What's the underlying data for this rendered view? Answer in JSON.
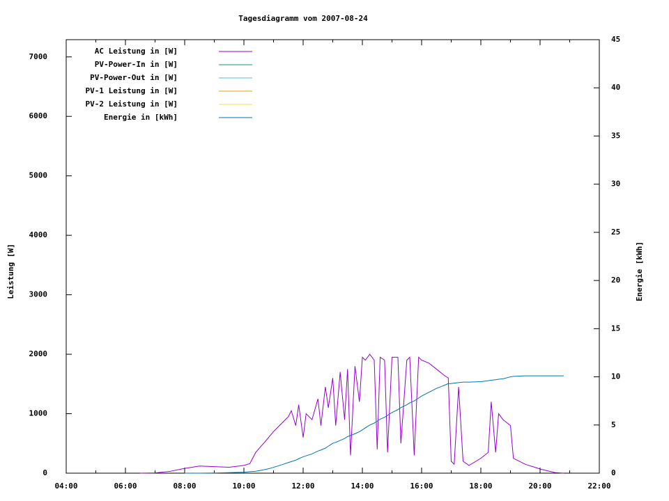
{
  "chart_data": {
    "type": "line",
    "title": "Tagesdiagramm vom 2007-08-24",
    "y_label": "Leistung [W]",
    "y2_label": "Energie [kWh]",
    "x": [
      6.5,
      7,
      7.5,
      8,
      8.25,
      8.5,
      9,
      9.5,
      10,
      10.2,
      10.4,
      10.75,
      11,
      11.3,
      11.5,
      11.6,
      11.75,
      11.85,
      12,
      12.1,
      12.3,
      12.5,
      12.6,
      12.75,
      12.85,
      13,
      13.1,
      13.25,
      13.4,
      13.5,
      13.6,
      13.75,
      13.9,
      14,
      14.1,
      14.25,
      14.4,
      14.5,
      14.6,
      14.75,
      14.85,
      15,
      15.2,
      15.3,
      15.5,
      15.6,
      15.75,
      15.9,
      16,
      16.25,
      16.5,
      16.75,
      16.9,
      17,
      17.1,
      17.25,
      17.4,
      17.6,
      18,
      18.25,
      18.35,
      18.5,
      18.6,
      18.75,
      19,
      19.1,
      19.5,
      20,
      20.5,
      20.8
    ],
    "series": [
      {
        "name": "AC Leistung in [W]",
        "color": "#9400d3",
        "values": [
          0,
          5,
          30,
          80,
          100,
          120,
          110,
          100,
          130,
          160,
          350,
          550,
          700,
          850,
          950,
          1050,
          800,
          1150,
          600,
          1000,
          900,
          1250,
          800,
          1450,
          1100,
          1600,
          800,
          1700,
          900,
          1750,
          300,
          1800,
          1200,
          1950,
          1900,
          2000,
          1900,
          400,
          1950,
          1900,
          350,
          1950,
          1950,
          500,
          1900,
          1950,
          300,
          1950,
          1900,
          1850,
          1750,
          1650,
          1600,
          200,
          150,
          1450,
          200,
          130,
          250,
          350,
          1200,
          350,
          1000,
          900,
          800,
          250,
          150,
          70,
          10,
          0
        ]
      },
      {
        "name": "PV-Power-In in [W]",
        "color": "#009e73",
        "values": [
          null,
          null,
          null,
          null,
          null,
          null,
          null,
          null,
          null,
          null,
          null,
          null,
          null,
          null,
          null,
          null,
          null,
          null,
          null,
          null,
          null,
          null,
          null,
          null,
          null,
          null,
          null,
          null,
          null,
          null,
          null,
          null,
          null,
          null,
          null,
          null,
          null,
          null,
          null,
          null,
          null,
          null,
          null,
          null,
          null,
          null,
          null,
          null,
          null,
          null,
          null,
          null,
          null,
          null,
          null,
          null,
          null,
          null,
          null,
          null,
          null,
          null,
          null,
          null,
          null,
          null,
          null,
          null,
          null,
          null
        ]
      },
      {
        "name": "PV-Power-Out in [W]",
        "color": "#56b4e9",
        "values": [
          null,
          null,
          null,
          null,
          null,
          null,
          null,
          null,
          null,
          null,
          null,
          null,
          null,
          null,
          null,
          null,
          null,
          null,
          null,
          null,
          null,
          null,
          null,
          null,
          null,
          null,
          null,
          null,
          null,
          null,
          null,
          null,
          null,
          null,
          null,
          null,
          null,
          null,
          null,
          null,
          null,
          null,
          null,
          null,
          null,
          null,
          null,
          null,
          null,
          null,
          null,
          null,
          null,
          null,
          null,
          null,
          null,
          null,
          null,
          null,
          null,
          null,
          null,
          null,
          null,
          null,
          null,
          null,
          null,
          null
        ]
      },
      {
        "name": "PV-1 Leistung in [W]",
        "color": "#e69f00",
        "values": [
          null,
          null,
          null,
          null,
          null,
          null,
          null,
          null,
          null,
          null,
          null,
          null,
          null,
          null,
          null,
          null,
          null,
          null,
          null,
          null,
          null,
          null,
          null,
          null,
          null,
          null,
          null,
          null,
          null,
          null,
          null,
          null,
          null,
          null,
          null,
          null,
          null,
          null,
          null,
          null,
          null,
          null,
          null,
          null,
          null,
          null,
          null,
          null,
          null,
          null,
          null,
          null,
          null,
          null,
          null,
          null,
          null,
          null,
          null,
          null,
          null,
          null,
          null,
          null,
          null,
          null,
          null,
          null,
          null,
          null
        ]
      },
      {
        "name": "PV-2 Leistung in [W]",
        "color": "#f0e442",
        "values": [
          null,
          null,
          null,
          null,
          null,
          null,
          null,
          null,
          null,
          null,
          null,
          null,
          null,
          null,
          null,
          null,
          null,
          null,
          null,
          null,
          null,
          null,
          null,
          null,
          null,
          null,
          null,
          null,
          null,
          null,
          null,
          null,
          null,
          null,
          null,
          null,
          null,
          null,
          null,
          null,
          null,
          null,
          null,
          null,
          null,
          null,
          null,
          null,
          null,
          null,
          null,
          null,
          null,
          null,
          null,
          null,
          null,
          null,
          null,
          null,
          null,
          null,
          null,
          null,
          null,
          null,
          null,
          null,
          null,
          null
        ]
      },
      {
        "name": "Energie in [kWh]",
        "color": "#0072b2",
        "axis": "y2",
        "values": [
          null,
          null,
          null,
          0,
          0,
          0,
          0.02,
          0.05,
          0.1,
          0.15,
          0.2,
          0.4,
          0.6,
          0.9,
          1.1,
          1.2,
          1.35,
          1.5,
          1.7,
          1.8,
          2.0,
          2.3,
          2.4,
          2.6,
          2.8,
          3.1,
          3.2,
          3.4,
          3.6,
          3.8,
          3.9,
          4.1,
          4.3,
          4.5,
          4.7,
          5.0,
          5.2,
          5.4,
          5.6,
          5.8,
          6.0,
          6.3,
          6.6,
          6.8,
          7.1,
          7.3,
          7.5,
          7.8,
          8.0,
          8.4,
          8.8,
          9.1,
          9.3,
          9.3,
          9.35,
          9.4,
          9.45,
          9.45,
          9.5,
          9.6,
          9.65,
          9.7,
          9.75,
          9.8,
          10.0,
          10.05,
          10.1,
          10.1,
          10.1,
          10.1
        ]
      }
    ],
    "xlim": [
      4,
      22
    ],
    "xticks": [
      {
        "value": 4,
        "label": "04:00"
      },
      {
        "value": 6,
        "label": "06:00"
      },
      {
        "value": 8,
        "label": "08:00"
      },
      {
        "value": 10,
        "label": "10:00"
      },
      {
        "value": 12,
        "label": "12:00"
      },
      {
        "value": 14,
        "label": "14:00"
      },
      {
        "value": 16,
        "label": "16:00"
      },
      {
        "value": 18,
        "label": "18:00"
      },
      {
        "value": 20,
        "label": "20:00"
      },
      {
        "value": 22,
        "label": "22:00"
      }
    ],
    "ylim": [
      0,
      7290
    ],
    "yticks": [
      0,
      1000,
      2000,
      3000,
      4000,
      5000,
      6000,
      7000
    ],
    "y2lim": [
      0,
      45
    ],
    "y2ticks": [
      0,
      5,
      10,
      15,
      20,
      25,
      30,
      35,
      40,
      45
    ],
    "legend": "top-left"
  }
}
